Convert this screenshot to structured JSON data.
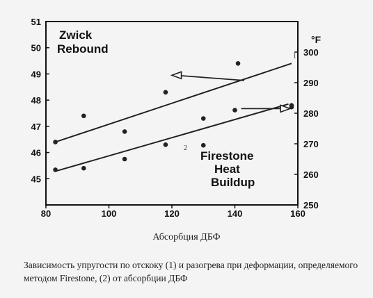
{
  "chart_data": {
    "type": "scatter",
    "xlabel": "Абсорбция ДБФ",
    "x_ticks": [
      80,
      100,
      120,
      140,
      160
    ],
    "xlim": [
      80,
      160
    ],
    "y_left": {
      "ticks": [
        45,
        46,
        47,
        48,
        49,
        50,
        51
      ],
      "ylim": [
        44,
        51
      ]
    },
    "y_right": {
      "unit": "°F",
      "ticks": [
        250,
        260,
        270,
        280,
        290,
        300
      ],
      "ylim": [
        250,
        310
      ]
    },
    "series": [
      {
        "name": "Zwick Rebound",
        "axis": "left",
        "curve_number": "1",
        "points": [
          [
            83,
            46.4
          ],
          [
            92,
            47.4
          ],
          [
            105,
            46.8
          ],
          [
            118,
            48.3
          ],
          [
            130,
            47.3
          ],
          [
            141,
            49.4
          ],
          [
            158,
            47.8
          ]
        ],
        "fit_line": [
          [
            83,
            46.4
          ],
          [
            158,
            49.4
          ]
        ]
      },
      {
        "name": "Firestone Heat Buildup",
        "axis": "right",
        "curve_number": "2",
        "points": [
          [
            83,
            261.5
          ],
          [
            92,
            262
          ],
          [
            105,
            265
          ],
          [
            118,
            269.7
          ],
          [
            130,
            269.5
          ],
          [
            140,
            281
          ],
          [
            158,
            282
          ]
        ],
        "fit_line": [
          [
            83,
            261
          ],
          [
            157,
            283
          ]
        ]
      }
    ],
    "annotations": [
      {
        "text": "Zwick",
        "series": 0
      },
      {
        "text": "Rebound",
        "series": 0
      },
      {
        "text": "Firestone",
        "series": 1
      },
      {
        "text": "Heat",
        "series": 1
      },
      {
        "text": "Buildup",
        "series": 1
      }
    ]
  },
  "caption": "Зависимость упругости по отскоку (1) и разогрева при деформации, определяемого методом Firestone, (2) от абсорбции ДБФ"
}
